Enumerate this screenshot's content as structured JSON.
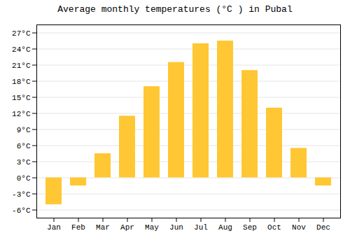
{
  "chart_data": {
    "type": "bar",
    "title": "Average monthly temperatures (°C ) in Pubal",
    "categories": [
      "Jan",
      "Feb",
      "Mar",
      "Apr",
      "May",
      "Jun",
      "Jul",
      "Aug",
      "Sep",
      "Oct",
      "Nov",
      "Dec"
    ],
    "values": [
      -5.0,
      -1.5,
      4.5,
      11.5,
      17.0,
      21.5,
      25.0,
      25.5,
      20.0,
      13.0,
      5.5,
      -1.5
    ],
    "color": "#FFC733",
    "ylim": [
      -7.5,
      28.5
    ],
    "yticks": [
      {
        "value": -6,
        "label": "-6°C"
      },
      {
        "value": -3,
        "label": "-3°C"
      },
      {
        "value": 0,
        "label": "0°C"
      },
      {
        "value": 3,
        "label": "3°C"
      },
      {
        "value": 6,
        "label": "6°C"
      },
      {
        "value": 9,
        "label": "9°C"
      },
      {
        "value": 12,
        "label": "12°C"
      },
      {
        "value": 15,
        "label": "15°C"
      },
      {
        "value": 18,
        "label": "18°C"
      },
      {
        "value": 21,
        "label": "21°C"
      },
      {
        "value": 24,
        "label": "24°C"
      },
      {
        "value": 27,
        "label": "27°C"
      }
    ],
    "grid": true
  }
}
